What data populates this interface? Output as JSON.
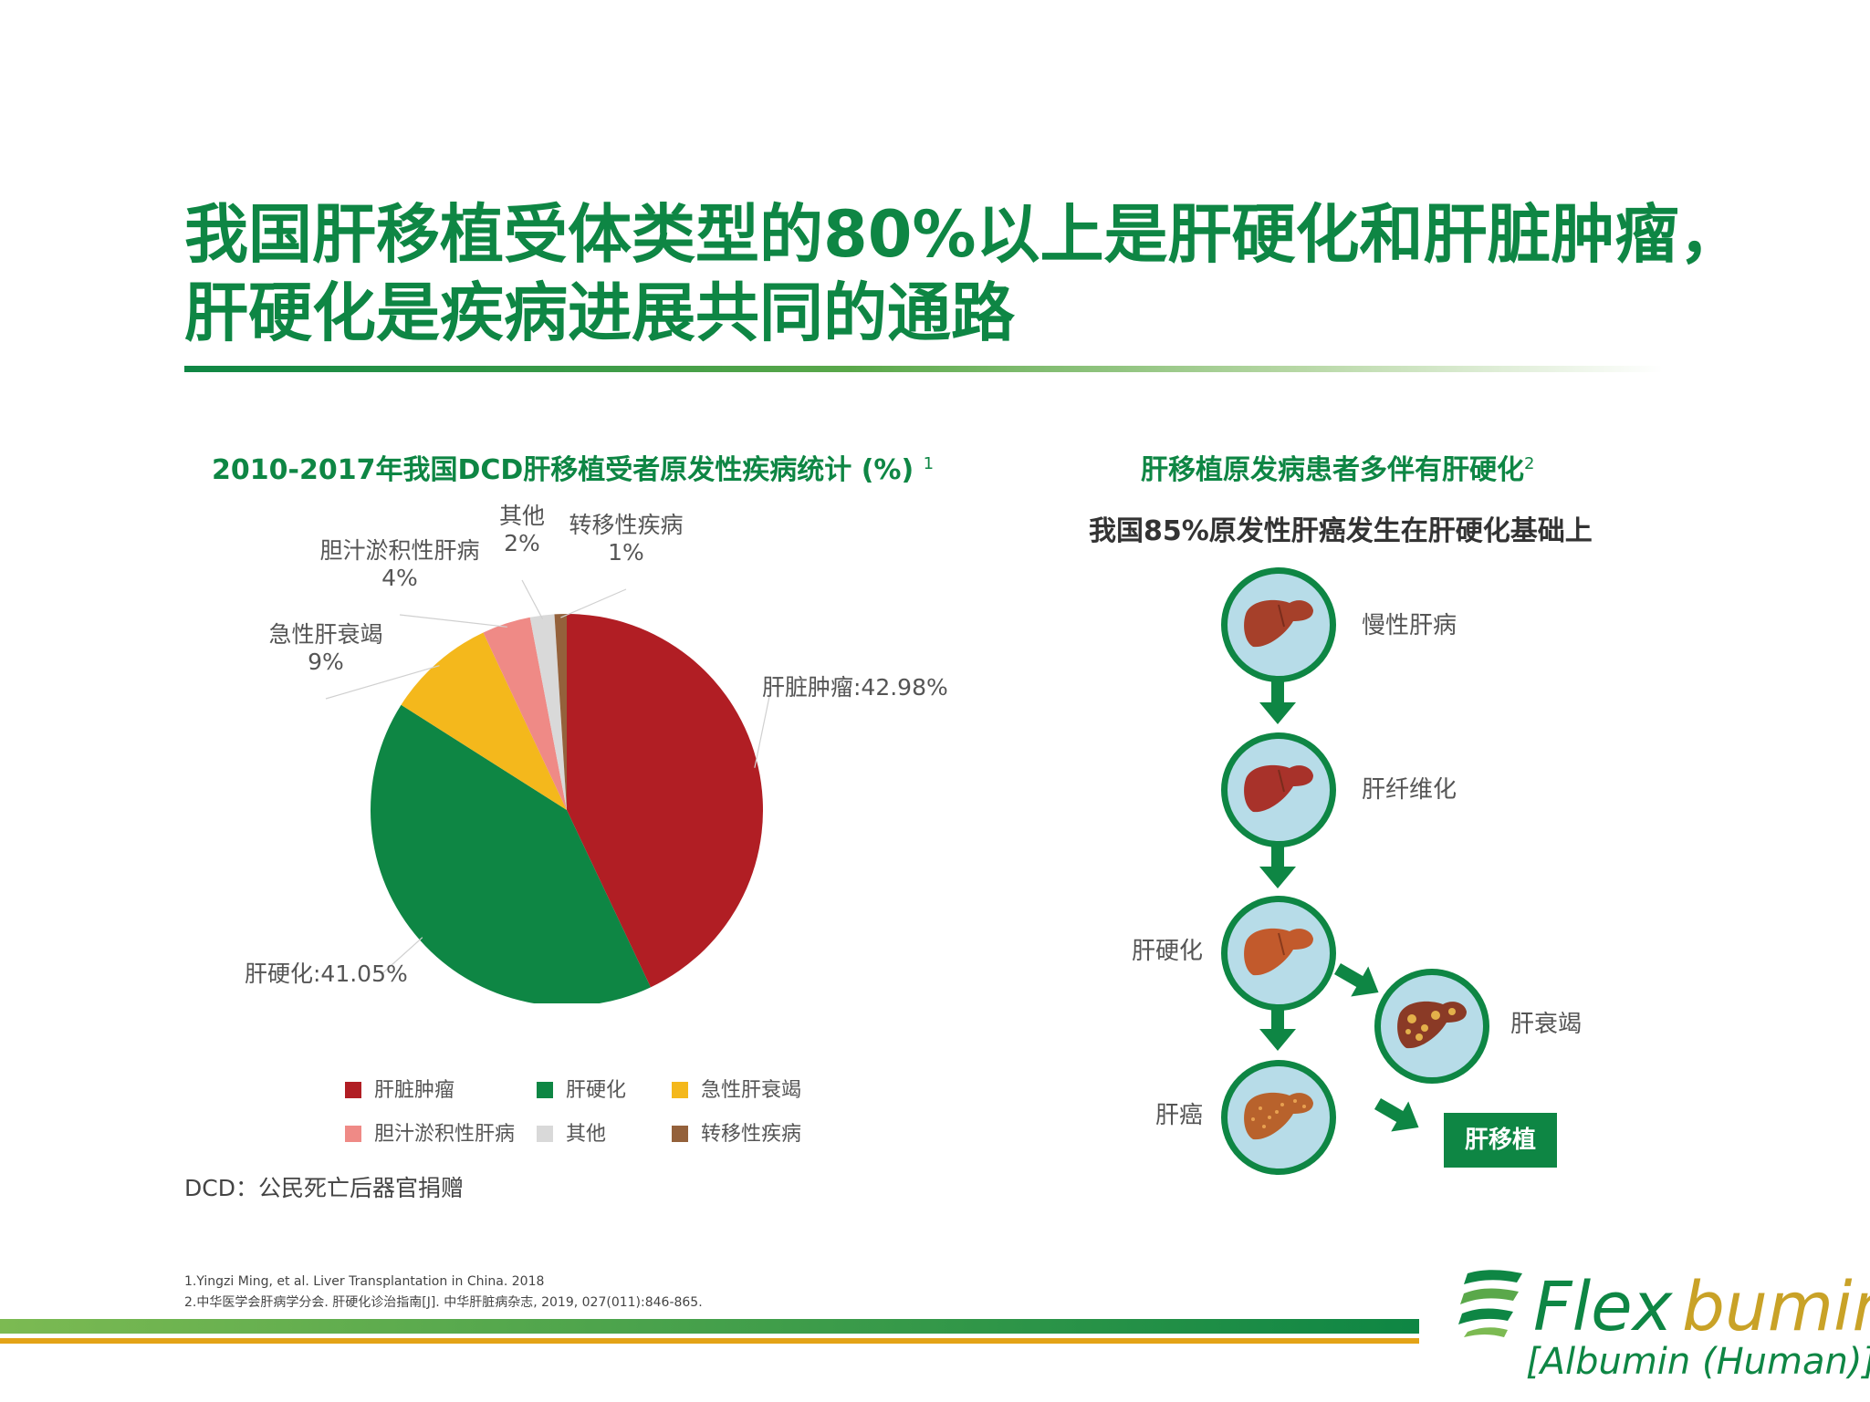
{
  "title": {
    "line1": "我国肝移植受体类型的80%以上是肝硬化和肝脏肿瘤，",
    "line2": "肝硬化是疾病进展共同的通路"
  },
  "chart_data": {
    "type": "pie",
    "title": "2010-2017年我国DCD肝移植受者原发性疾病统计 (%)",
    "title_sup": "1",
    "slices": [
      {
        "name": "肝脏肿瘤",
        "value": 42.98,
        "label": "肝脏肿瘤:42.98%",
        "color": "#b11e24"
      },
      {
        "name": "肝硬化",
        "value": 41.05,
        "label": "肝硬化:41.05%",
        "color": "#0e8644"
      },
      {
        "name": "急性肝衰竭",
        "value": 9,
        "label": "9%",
        "color": "#f4b81c"
      },
      {
        "name": "胆汁淤积性肝病",
        "value": 4,
        "label": "4%",
        "color": "#ef8a86"
      },
      {
        "name": "其他",
        "value": 2,
        "label": "2%",
        "color": "#d9d9d9"
      },
      {
        "name": "转移性疾病",
        "value": 1,
        "label": "1%",
        "color": "#94613b"
      }
    ],
    "legend": [
      "肝脏肿瘤",
      "肝硬化",
      "急性肝衰竭",
      "胆汁淤积性肝病",
      "其他",
      "转移性疾病"
    ],
    "legend_position": "bottom"
  },
  "dcd_note": "DCD：公民死亡后器官捐赠",
  "flow": {
    "title": "肝移植原发病患者多伴有肝硬化",
    "title_sup": "2",
    "subtitle": "我国85%原发性肝癌发生在肝硬化基础上",
    "nodes": [
      "慢性肝病",
      "肝纤维化",
      "肝硬化",
      "肝衰竭",
      "肝癌"
    ],
    "outcome": "肝移植",
    "colors": {
      "arrow": "#0e8644",
      "circle": "#b7dce8",
      "liver": "#a6402a"
    }
  },
  "references": [
    "1.Yingzi Ming, et al. Liver Transplantation in China. 2018",
    "2.中华医学会肝病学分会. 肝硬化诊治指南[J]. 中华肝脏病杂志, 2019, 027(011):846-865."
  ],
  "logo": {
    "flex": "Flex",
    "bumin": "bumin",
    "sub": "[Albumin (Human)]"
  }
}
